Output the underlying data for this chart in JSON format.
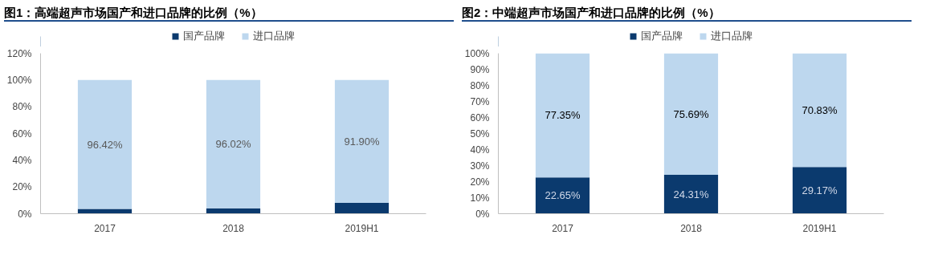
{
  "chart_data": [
    {
      "type": "bar",
      "title": "图1：高端超声市场国产和进口品牌的比例（%）",
      "categories": [
        "2017",
        "2018",
        "2019H1"
      ],
      "stacked": true,
      "legend": "top",
      "grid": false,
      "ylim": [
        0,
        120
      ],
      "yticks": [
        {
          "value": 0,
          "label": "0%"
        },
        {
          "value": 20,
          "label": "20%"
        },
        {
          "value": 40,
          "label": "40%"
        },
        {
          "value": 60,
          "label": "60%"
        },
        {
          "value": 80,
          "label": "80%"
        },
        {
          "value": 100,
          "label": "100%"
        },
        {
          "value": 120,
          "label": "120%"
        }
      ],
      "series": [
        {
          "name": "国产品牌",
          "color": "#0b3a6e",
          "values": [
            3.6,
            4.0,
            8.1
          ]
        },
        {
          "name": "进口品牌",
          "color": "#bdd7ee",
          "values": [
            96.42,
            96.02,
            91.9
          ],
          "value_labels": [
            "96.42%",
            "96.02%",
            "91.90%"
          ]
        }
      ]
    },
    {
      "type": "bar",
      "title": "图2：中端超声市场国产和进口品牌的比例（%）",
      "categories": [
        "2017",
        "2018",
        "2019H1"
      ],
      "stacked": true,
      "legend": "top",
      "grid": false,
      "ylim": [
        0,
        100
      ],
      "yticks": [
        {
          "value": 0,
          "label": "0%"
        },
        {
          "value": 10,
          "label": "10%"
        },
        {
          "value": 20,
          "label": "20%"
        },
        {
          "value": 30,
          "label": "30%"
        },
        {
          "value": 40,
          "label": "40%"
        },
        {
          "value": 50,
          "label": "50%"
        },
        {
          "value": 60,
          "label": "60%"
        },
        {
          "value": 70,
          "label": "70%"
        },
        {
          "value": 80,
          "label": "80%"
        },
        {
          "value": 90,
          "label": "90%"
        },
        {
          "value": 100,
          "label": "100%"
        }
      ],
      "series": [
        {
          "name": "国产品牌",
          "color": "#0b3a6e",
          "values": [
            22.65,
            24.31,
            29.17
          ],
          "value_labels": [
            "22.65%",
            "24.31%",
            "29.17%"
          ]
        },
        {
          "name": "进口品牌",
          "color": "#bdd7ee",
          "values": [
            77.35,
            75.69,
            70.83
          ],
          "value_labels": [
            "77.35%",
            "75.69%",
            "70.83%"
          ]
        }
      ]
    }
  ]
}
